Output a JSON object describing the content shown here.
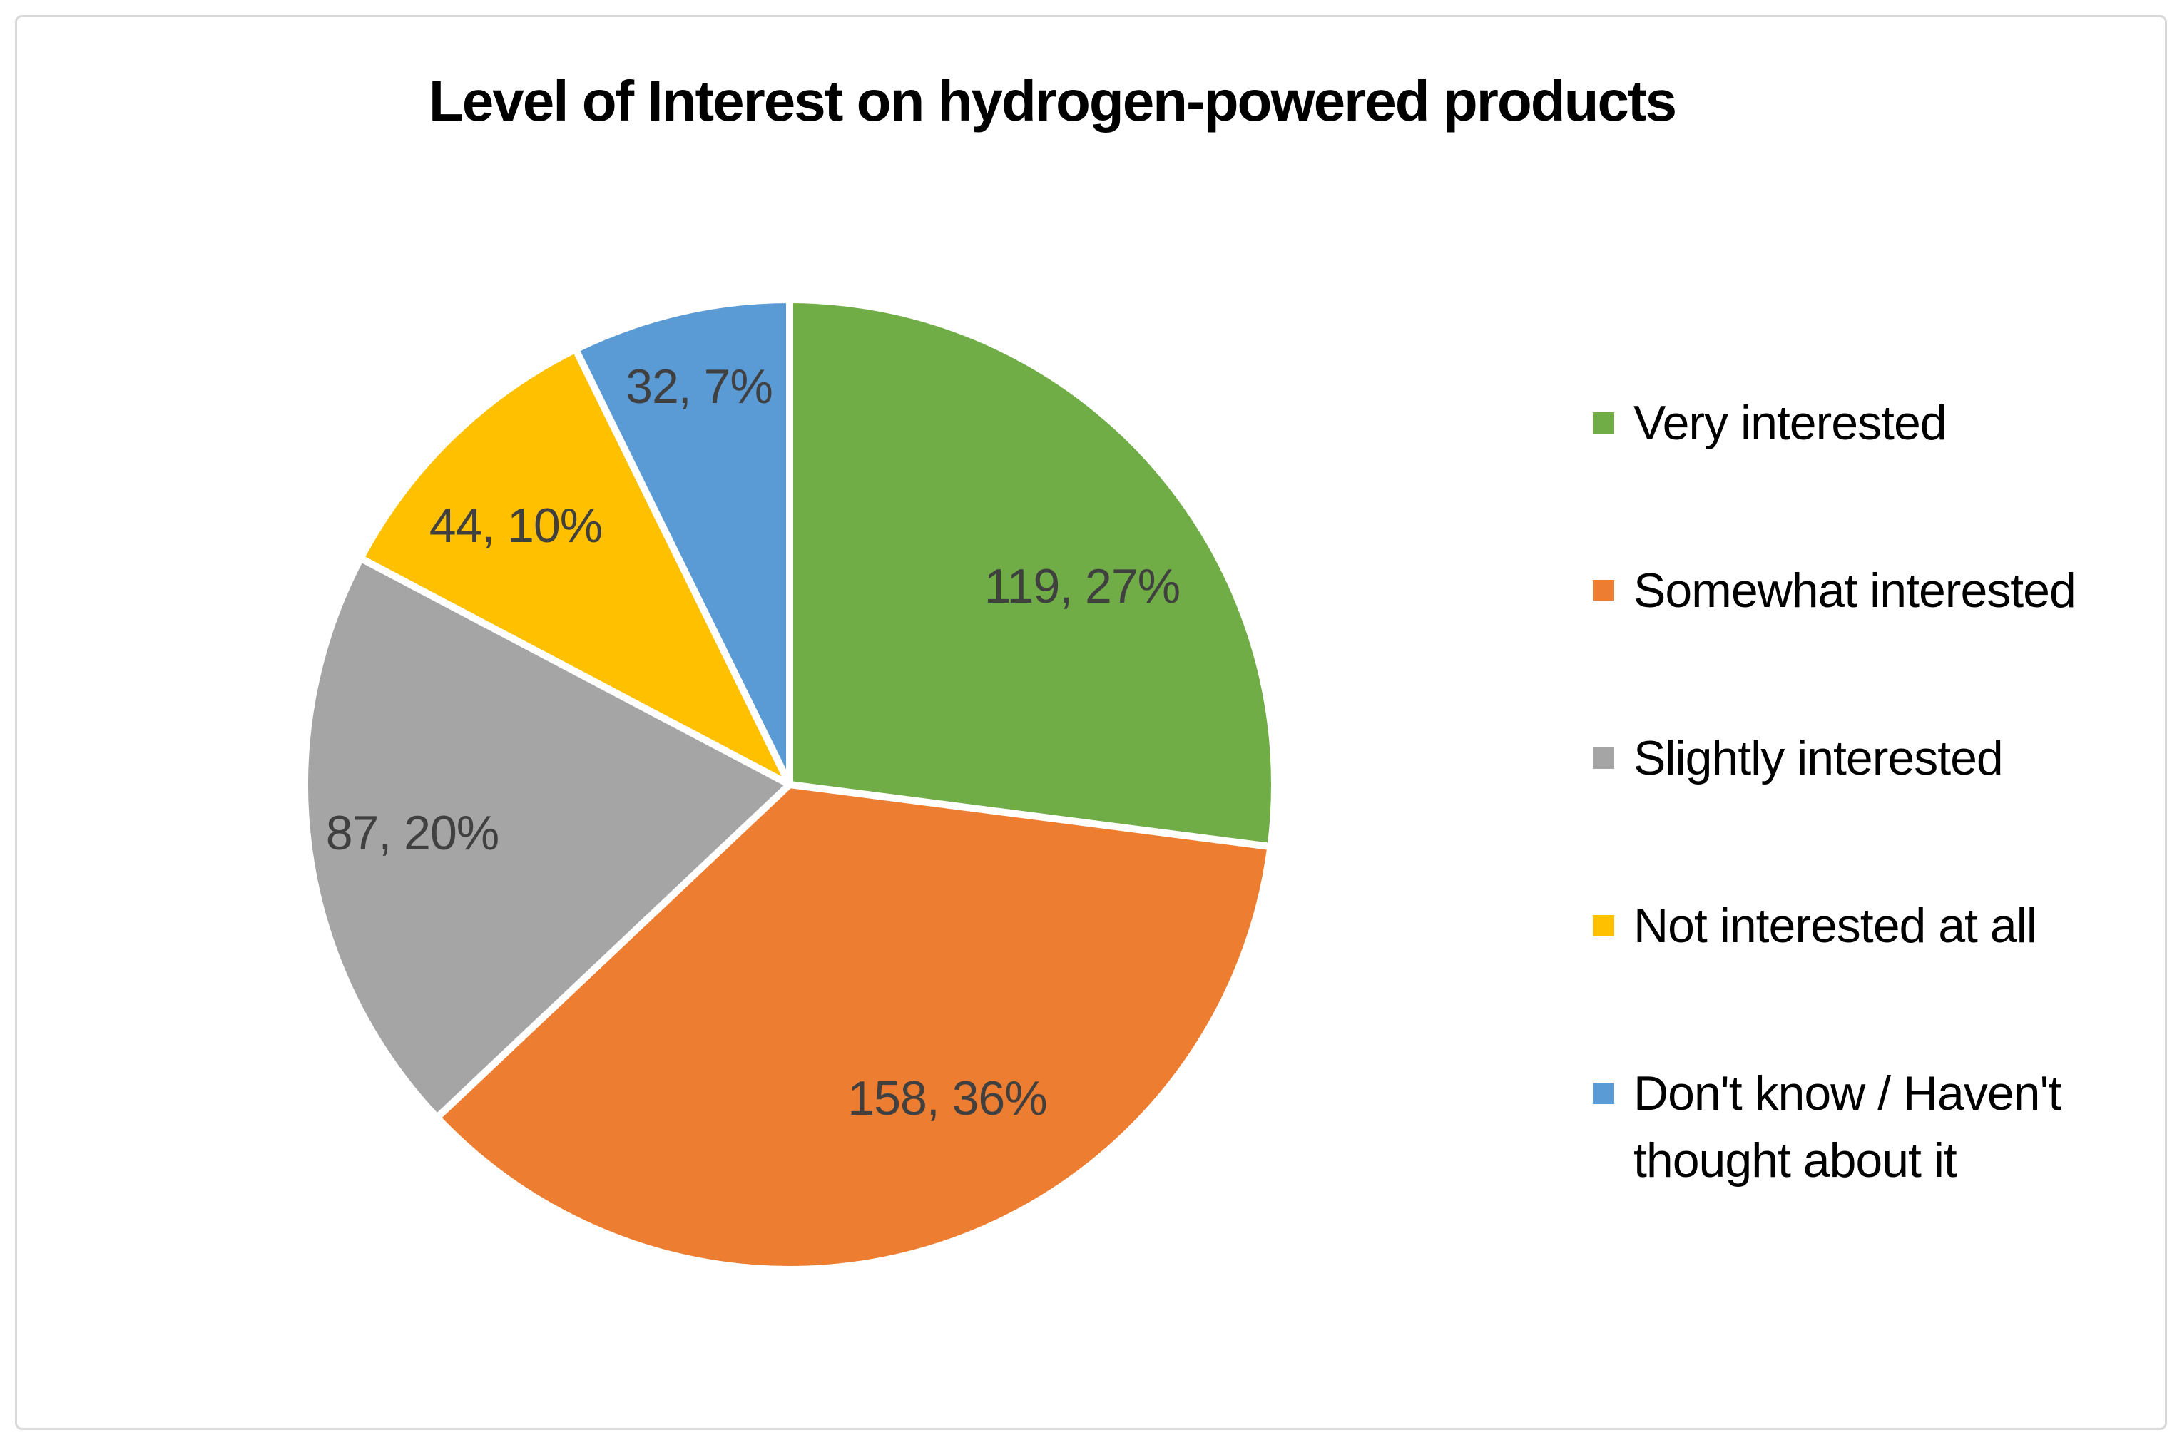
{
  "chart_data": {
    "type": "pie",
    "title": "Level of Interest on hydrogen-powered products",
    "legend_position": "right",
    "start_angle_deg": 0,
    "direction": "clockwise",
    "data_label_format": "value, percent",
    "series": [
      {
        "label": "Very interested",
        "value": 119,
        "pct": "27%",
        "data_label": "119, 27%",
        "color": "#70AD47"
      },
      {
        "label": "Somewhat interested",
        "value": 158,
        "pct": "36%",
        "data_label": "158, 36%",
        "color": "#ED7D31"
      },
      {
        "label": "Slightly interested",
        "value": 87,
        "pct": "20%",
        "data_label": "87, 20%",
        "color": "#A5A5A5"
      },
      {
        "label": "Not interested at all",
        "value": 44,
        "pct": "10%",
        "data_label": "44, 10%",
        "color": "#FFC000"
      },
      {
        "label": "Don't know / Haven't thought about it",
        "value": 32,
        "pct": "7%",
        "data_label": "32, 7%",
        "color": "#5B9BD5"
      }
    ]
  },
  "colors": {
    "background": "#FFFFFF",
    "frame_border": "#D9D9D9",
    "title_text": "#000000",
    "data_label_text": "#404040",
    "legend_text": "#000000",
    "slice_border": "#FFFFFF"
  }
}
